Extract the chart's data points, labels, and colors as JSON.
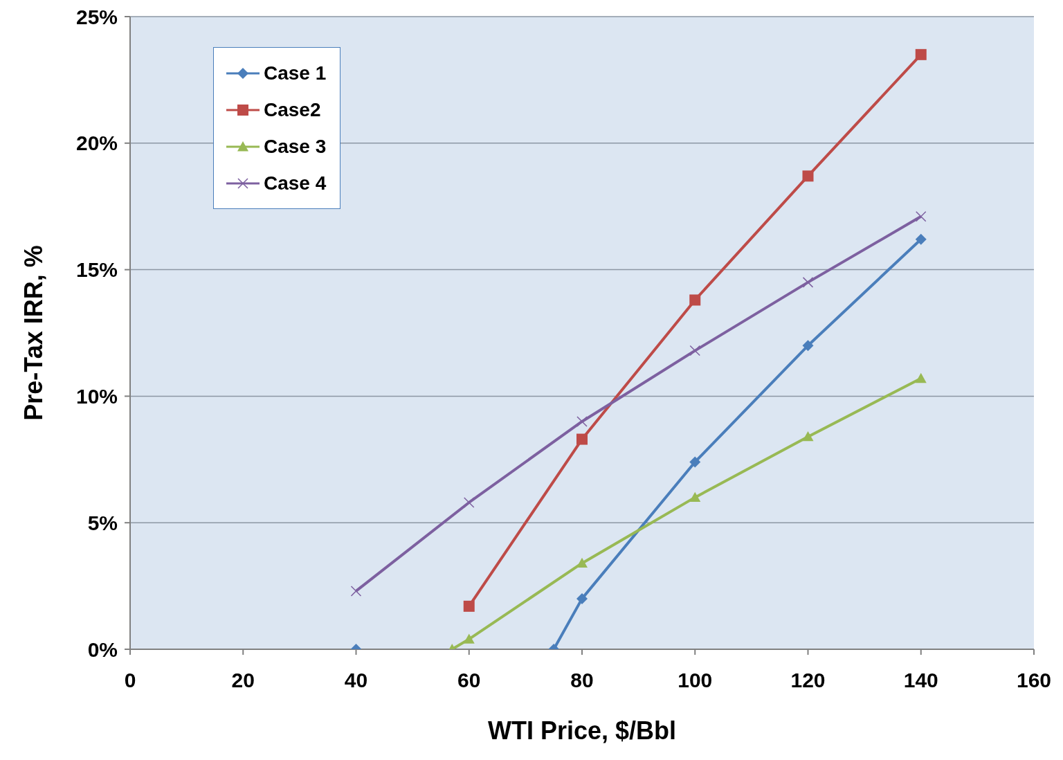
{
  "chart_data": {
    "type": "line",
    "xlabel": "WTI Price, $/Bbl",
    "ylabel": "Pre-Tax IRR, %",
    "xlim": [
      0,
      160
    ],
    "xticks": [
      0,
      20,
      40,
      60,
      80,
      100,
      120,
      140,
      160
    ],
    "ylim": [
      0,
      25
    ],
    "yticks": [
      {
        "value": 0,
        "label": "0%"
      },
      {
        "value": 5,
        "label": "5%"
      },
      {
        "value": 10,
        "label": "10%"
      },
      {
        "value": 15,
        "label": "15%"
      },
      {
        "value": 20,
        "label": "20%"
      },
      {
        "value": 25,
        "label": "25%"
      }
    ],
    "grid": "y",
    "legend": "top left",
    "line_style": "solid",
    "series": [
      {
        "name": "Case 1",
        "color": "#4a7ebb",
        "marker": "diamond",
        "x": [
          40,
          60,
          75,
          80,
          100,
          120,
          140
        ],
        "values": [
          0,
          null,
          0,
          2.0,
          7.4,
          12.0,
          16.2
        ]
      },
      {
        "name": "Case2",
        "color": "#be4b48",
        "marker": "square",
        "x": [
          60,
          80,
          100,
          120,
          140
        ],
        "values": [
          1.7,
          8.3,
          13.8,
          18.7,
          23.5
        ]
      },
      {
        "name": "Case 3",
        "color": "#98b954",
        "marker": "triangle",
        "x": [
          57,
          60,
          80,
          100,
          120,
          140
        ],
        "values": [
          0,
          0.4,
          3.4,
          6.0,
          8.4,
          10.7
        ]
      },
      {
        "name": "Case 4",
        "color": "#7d60a0",
        "marker": "cross",
        "x": [
          40,
          60,
          80,
          100,
          120,
          140
        ],
        "values": [
          2.3,
          5.8,
          9.0,
          11.8,
          14.5,
          17.1
        ]
      }
    ]
  }
}
